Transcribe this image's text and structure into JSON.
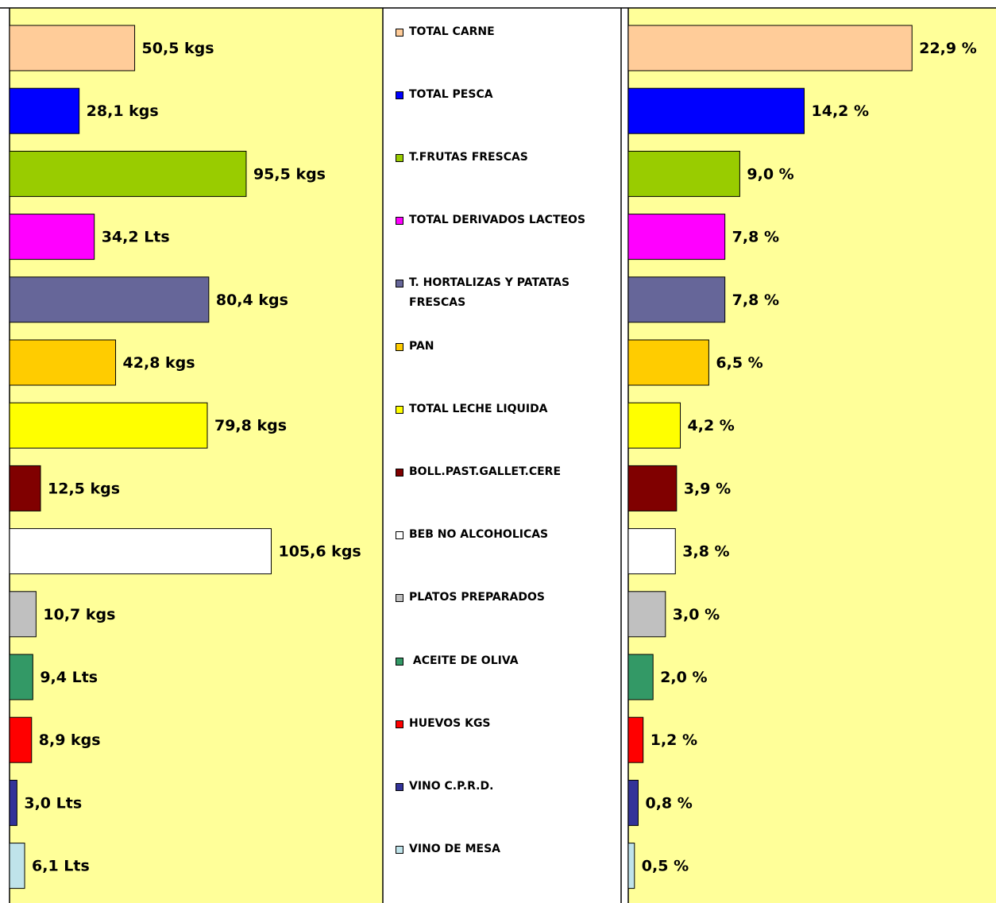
{
  "chart_data": [
    {
      "type": "bar",
      "orientation": "horizontal",
      "categories": [
        "TOTAL CARNE",
        "TOTAL PESCA",
        "T.FRUTAS FRESCAS",
        "TOTAL DERIVADOS LACTEOS",
        "T. HORTALIZAS Y PATATAS FRESCAS",
        "PAN",
        "TOTAL LECHE LIQUIDA",
        "BOLL.PAST.GALLET.CERE",
        "BEB NO ALCOHOLICAS",
        "PLATOS PREPARADOS",
        " ACEITE DE OLIVA",
        "HUEVOS KGS",
        "VINO C.P.R.D.",
        "VINO DE MESA"
      ],
      "colors": [
        "#ffcc99",
        "#0000ff",
        "#99cc00",
        "#ff00ff",
        "#666699",
        "#ffcc00",
        "#ffff00",
        "#800000",
        "#ffffff",
        "#c0c0c0",
        "#339966",
        "#ff0000",
        "#333399",
        "#bfe3ea"
      ],
      "values": [
        50.5,
        28.1,
        95.5,
        34.2,
        80.4,
        42.8,
        79.8,
        12.5,
        105.6,
        10.7,
        9.4,
        8.9,
        3.0,
        6.1
      ],
      "value_labels": [
        "50,5 kgs",
        "28,1 kgs",
        "95,5 kgs",
        "34,2 Lts",
        "80,4 kgs",
        "42,8 kgs",
        "79,8 kgs",
        "12,5 kgs",
        "105,6 kgs",
        "10,7 kgs",
        "9,4 Lts",
        "8,9 kgs",
        "3,0 Lts",
        "6,1 Lts"
      ],
      "xlim": [
        0,
        150
      ]
    },
    {
      "type": "bar",
      "orientation": "horizontal",
      "values": [
        22.9,
        14.2,
        9.0,
        7.8,
        7.8,
        6.5,
        4.2,
        3.9,
        3.8,
        3.0,
        2.0,
        1.2,
        0.8,
        0.5
      ],
      "value_labels": [
        "22,9 %",
        "14,2 %",
        "9,0 %",
        "7,8 %",
        "7,8 %",
        "6,5 %",
        "4,2 %",
        "3,9 %",
        "3,8 %",
        "3,0 %",
        "2,0 %",
        "1,2 %",
        "0,8 %",
        "0,5 %"
      ],
      "xlim": [
        0,
        30
      ]
    }
  ]
}
